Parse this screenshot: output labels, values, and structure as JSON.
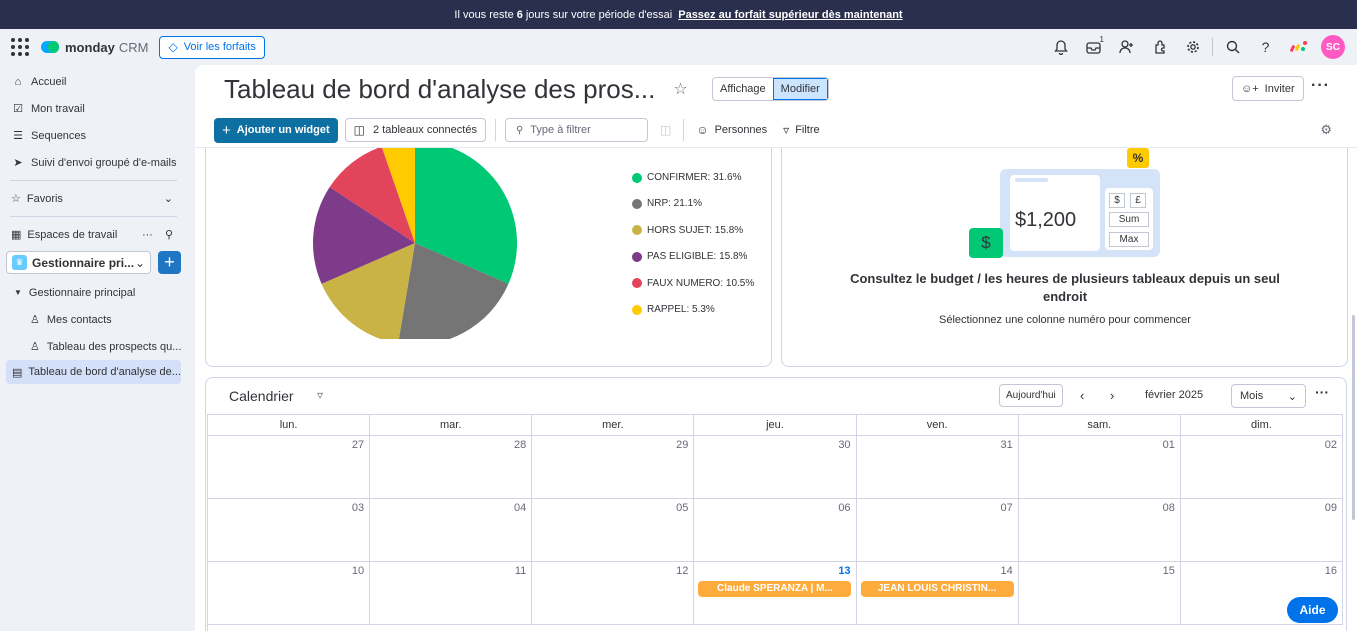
{
  "banner": {
    "text_before": "Il vous reste",
    "days": "6",
    "text_after": "jours sur votre période d'essai",
    "link": "Passez au forfait supérieur dès maintenant"
  },
  "header": {
    "logo_brand": "monday",
    "logo_product": "CRM",
    "plans_button": "Voir les forfaits",
    "inbox_count": "1",
    "avatar_initials": "SC"
  },
  "sidebar": {
    "nav": [
      {
        "label": "Accueil",
        "icon": "home-icon"
      },
      {
        "label": "Mon travail",
        "icon": "calendar-check-icon"
      },
      {
        "label": "Sequences",
        "icon": "list-icon"
      },
      {
        "label": "Suivi d'envoi groupé d'e-mails",
        "icon": "send-icon"
      }
    ],
    "favorites": "Favoris",
    "workspaces": "Espaces de travail",
    "workspace_selected": "Gestionnaire pri...",
    "folder": "Gestionnaire principal",
    "items": [
      {
        "label": "Mes contacts"
      },
      {
        "label": "Tableau des prospects qu..."
      },
      {
        "label": "Tableau de bord d'analyse de..."
      }
    ]
  },
  "page": {
    "title": "Tableau de bord d'analyse des pros...",
    "view_label": "Affichage",
    "edit_label": "Modifier",
    "invite_label": "Inviter"
  },
  "toolbar": {
    "add_widget": "Ajouter un widget",
    "connected_boards": "2 tableaux connectés",
    "filter_placeholder": "Type à filtrer",
    "people": "Personnes",
    "filter": "Filtre"
  },
  "chart_data": {
    "type": "pie",
    "slices": [
      {
        "label": "CONFIRMER",
        "value": 31.6,
        "display": "CONFIRMER: 31.6%",
        "color": "#00c875"
      },
      {
        "label": "NRP",
        "value": 21.1,
        "display": "NRP: 21.1%",
        "color": "#757575"
      },
      {
        "label": "HORS SUJET",
        "value": 15.8,
        "display": "HORS SUJET: 15.8%",
        "color": "#c9b344"
      },
      {
        "label": "PAS ELIGIBLE",
        "value": 15.8,
        "display": "PAS ELIGIBLE: 15.8%",
        "color": "#7e3b8a"
      },
      {
        "label": "FAUX NUMERO",
        "value": 10.5,
        "display": "FAUX NUMERO: 10.5%",
        "color": "#e2445c"
      },
      {
        "label": "RAPPEL",
        "value": 5.3,
        "display": "RAPPEL: 5.3%",
        "color": "#ffcb00"
      }
    ]
  },
  "budget_widget": {
    "amount": "$1,200",
    "dollar": "$",
    "percent": "%",
    "currency_a": "$",
    "currency_b": "£",
    "sum": "Sum",
    "max": "Max",
    "title": "Consultez le budget / les heures de plusieurs tableaux depuis un seul endroit",
    "subtitle": "Sélectionnez une colonne numéro pour commencer"
  },
  "calendar": {
    "title": "Calendrier",
    "today_button": "Aujourd'hui",
    "month": "février 2025",
    "mode": "Mois",
    "day_names": [
      "lun.",
      "mar.",
      "mer.",
      "jeu.",
      "ven.",
      "sam.",
      "dim."
    ],
    "weeks": [
      [
        "27",
        "28",
        "29",
        "30",
        "31",
        "01",
        "02"
      ],
      [
        "03",
        "04",
        "05",
        "06",
        "07",
        "08",
        "09"
      ],
      [
        "10",
        "11",
        "12",
        "13",
        "14",
        "15",
        "16"
      ]
    ],
    "events": [
      {
        "week": 2,
        "day": 3,
        "label": "Claude SPERANZA | M..."
      },
      {
        "week": 2,
        "day": 4,
        "label": "JEAN LOUIS CHRISTIN..."
      }
    ]
  },
  "help_button": "Aide"
}
